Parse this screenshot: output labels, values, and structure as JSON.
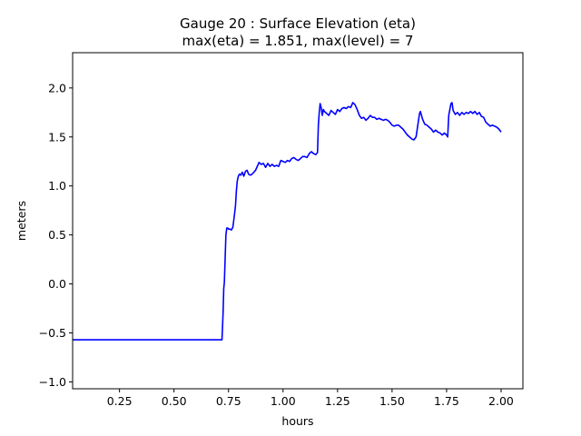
{
  "chart_data": {
    "type": "line",
    "title": "Gauge 20 : Surface Elevation (eta)",
    "subtitle": "max(eta) =   1.851,    max(level) = 7",
    "xlabel": "hours",
    "ylabel": "meters",
    "xlim": [
      0.035,
      2.1
    ],
    "ylim": [
      -1.07,
      2.36
    ],
    "xticks": [
      0.25,
      0.5,
      0.75,
      1.0,
      1.25,
      1.5,
      1.75,
      2.0
    ],
    "xtick_labels": [
      "0.25",
      "0.50",
      "0.75",
      "1.00",
      "1.25",
      "1.50",
      "1.75",
      "2.00"
    ],
    "yticks": [
      -1.0,
      -0.5,
      0.0,
      0.5,
      1.0,
      1.5,
      2.0
    ],
    "ytick_labels": [
      "−1.0",
      "−0.5",
      "0.0",
      "0.5",
      "1.0",
      "1.5",
      "2.0"
    ],
    "grid": false,
    "series": [
      {
        "color": "#0000ff",
        "x": [
          0.035,
          0.72,
          0.725,
          0.728,
          0.731,
          0.735,
          0.738,
          0.742,
          0.746,
          0.75,
          0.756,
          0.763,
          0.77,
          0.774,
          0.778,
          0.782,
          0.786,
          0.79,
          0.795,
          0.8,
          0.806,
          0.813,
          0.82,
          0.828,
          0.835,
          0.842,
          0.85,
          0.858,
          0.866,
          0.874,
          0.882,
          0.89,
          0.9,
          0.91,
          0.92,
          0.93,
          0.94,
          0.95,
          0.96,
          0.97,
          0.98,
          0.99,
          1.0,
          1.01,
          1.02,
          1.03,
          1.04,
          1.05,
          1.06,
          1.07,
          1.08,
          1.09,
          1.1,
          1.11,
          1.12,
          1.13,
          1.14,
          1.15,
          1.158,
          1.162,
          1.166,
          1.17,
          1.175,
          1.18,
          1.185,
          1.19,
          1.2,
          1.21,
          1.22,
          1.23,
          1.24,
          1.25,
          1.26,
          1.27,
          1.28,
          1.29,
          1.3,
          1.31,
          1.32,
          1.33,
          1.34,
          1.35,
          1.36,
          1.37,
          1.38,
          1.39,
          1.4,
          1.41,
          1.42,
          1.43,
          1.44,
          1.45,
          1.46,
          1.47,
          1.48,
          1.49,
          1.5,
          1.51,
          1.52,
          1.53,
          1.54,
          1.55,
          1.56,
          1.57,
          1.58,
          1.59,
          1.6,
          1.61,
          1.618,
          1.622,
          1.626,
          1.63,
          1.635,
          1.64,
          1.65,
          1.66,
          1.67,
          1.68,
          1.69,
          1.7,
          1.71,
          1.72,
          1.73,
          1.74,
          1.75,
          1.755,
          1.76,
          1.765,
          1.77,
          1.775,
          1.78,
          1.79,
          1.8,
          1.81,
          1.82,
          1.83,
          1.84,
          1.85,
          1.86,
          1.87,
          1.88,
          1.89,
          1.9,
          1.91,
          1.92,
          1.93,
          1.94,
          1.95,
          1.96,
          1.97,
          1.98,
          1.99,
          2.0
        ],
        "y": [
          -0.57,
          -0.57,
          -0.3,
          -0.05,
          0.02,
          0.3,
          0.5,
          0.57,
          0.57,
          0.56,
          0.56,
          0.55,
          0.58,
          0.65,
          0.72,
          0.8,
          0.95,
          1.05,
          1.1,
          1.12,
          1.11,
          1.14,
          1.1,
          1.15,
          1.16,
          1.12,
          1.11,
          1.12,
          1.14,
          1.16,
          1.2,
          1.24,
          1.22,
          1.23,
          1.19,
          1.23,
          1.2,
          1.22,
          1.2,
          1.21,
          1.2,
          1.26,
          1.25,
          1.24,
          1.26,
          1.25,
          1.28,
          1.29,
          1.27,
          1.26,
          1.28,
          1.3,
          1.3,
          1.29,
          1.33,
          1.35,
          1.33,
          1.32,
          1.34,
          1.62,
          1.75,
          1.84,
          1.8,
          1.72,
          1.78,
          1.76,
          1.74,
          1.72,
          1.77,
          1.75,
          1.73,
          1.78,
          1.76,
          1.79,
          1.8,
          1.79,
          1.81,
          1.8,
          1.85,
          1.83,
          1.78,
          1.72,
          1.69,
          1.7,
          1.67,
          1.69,
          1.72,
          1.7,
          1.7,
          1.68,
          1.69,
          1.68,
          1.67,
          1.68,
          1.67,
          1.65,
          1.62,
          1.61,
          1.62,
          1.62,
          1.6,
          1.58,
          1.55,
          1.52,
          1.5,
          1.48,
          1.47,
          1.5,
          1.62,
          1.68,
          1.74,
          1.76,
          1.72,
          1.68,
          1.63,
          1.62,
          1.6,
          1.58,
          1.55,
          1.57,
          1.55,
          1.54,
          1.52,
          1.54,
          1.52,
          1.5,
          1.72,
          1.78,
          1.84,
          1.85,
          1.77,
          1.73,
          1.75,
          1.72,
          1.75,
          1.73,
          1.75,
          1.74,
          1.76,
          1.74,
          1.76,
          1.73,
          1.75,
          1.71,
          1.7,
          1.65,
          1.63,
          1.61,
          1.62,
          1.61,
          1.6,
          1.58,
          1.55
        ]
      }
    ]
  }
}
